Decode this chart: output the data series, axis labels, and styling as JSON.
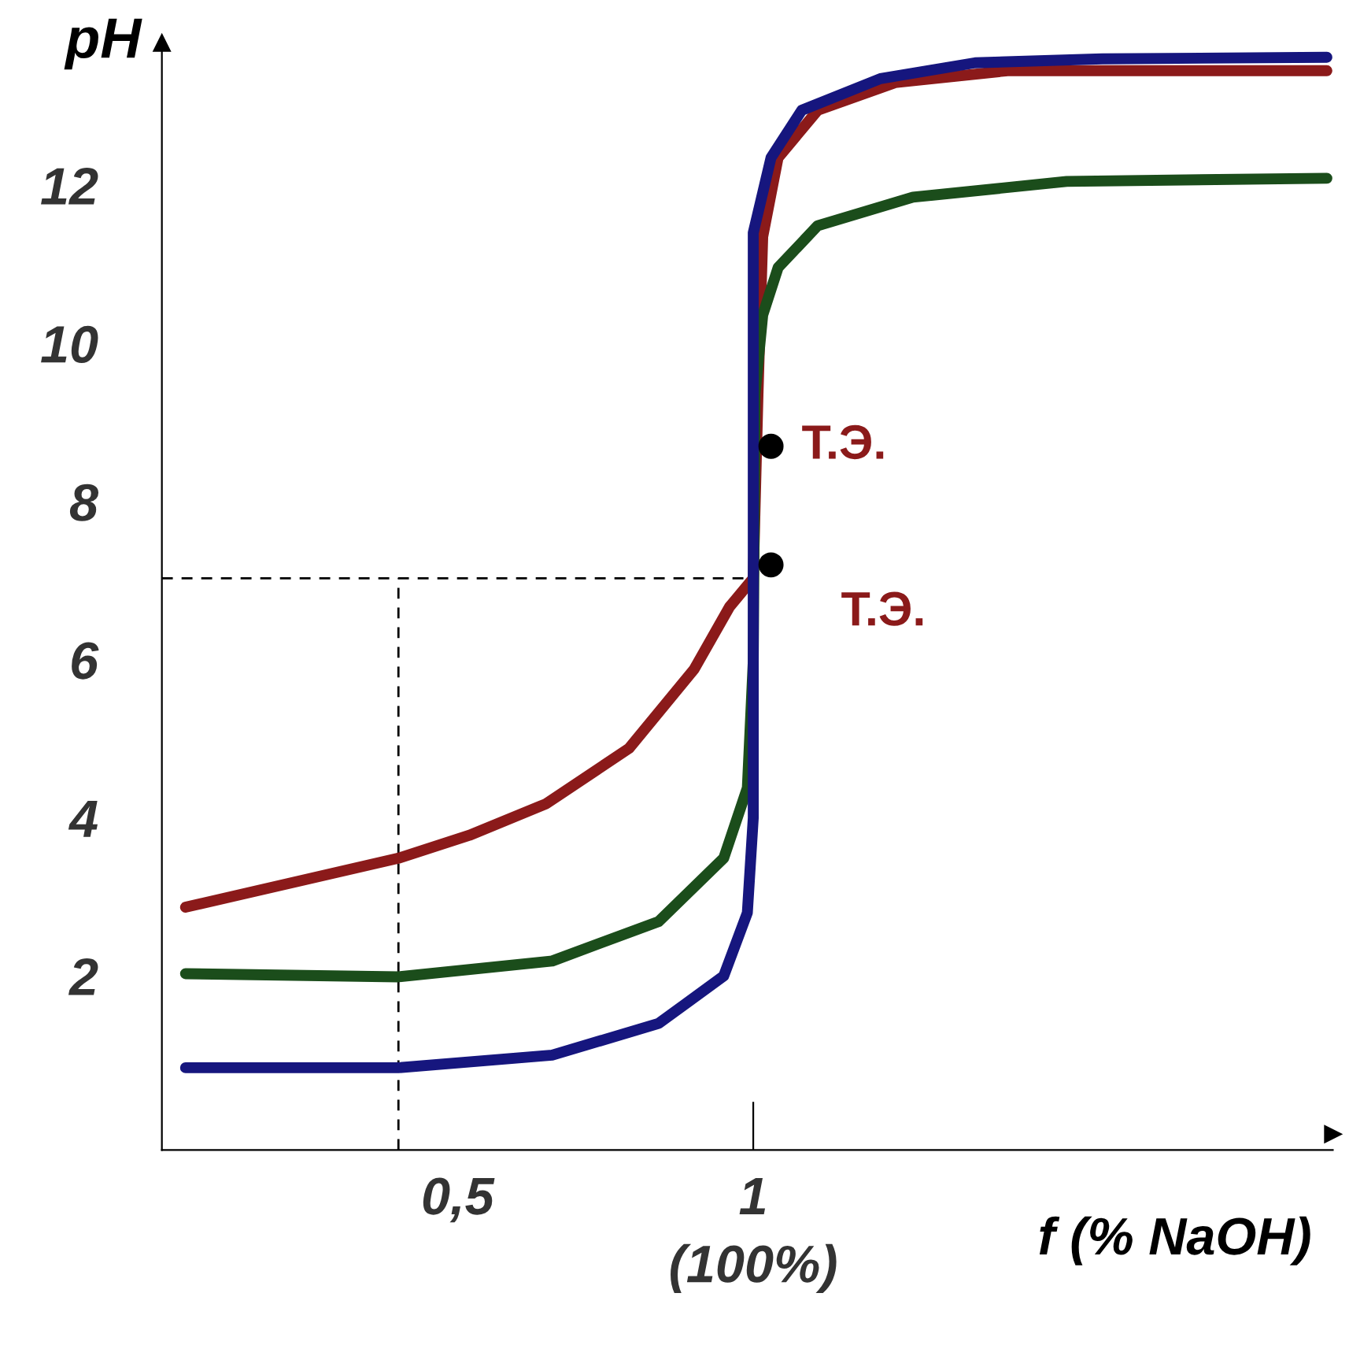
{
  "chart_data": {
    "type": "line",
    "xlabel": "f (% NaOH)",
    "ylabel": "pH",
    "xlim": [
      0,
      1.98
    ],
    "ylim": [
      -0.2,
      13.8
    ],
    "xticks": [
      {
        "value": 0.5,
        "label": "0,5"
      },
      1
    ],
    "yticks": [
      2,
      4,
      6,
      8,
      10,
      12
    ],
    "grid": false,
    "legend": false,
    "series": [
      {
        "color": "#8b1a1a",
        "x": [
          0.04,
          0.4,
          0.52,
          0.65,
          0.79,
          0.9,
          0.96,
          1.0,
          1.008,
          1.016,
          1.042,
          1.109,
          1.24,
          1.43,
          1.97
        ],
        "values": [
          2.87,
          3.49,
          3.78,
          4.18,
          4.88,
          5.88,
          6.67,
          7.03,
          9.36,
          11.35,
          12.35,
          12.95,
          13.3,
          13.45,
          13.45
        ]
      },
      {
        "color": "#1b4d1b",
        "x": [
          0.04,
          0.4,
          0.66,
          0.84,
          0.95,
          0.99,
          1.0,
          1.003,
          1.016,
          1.042,
          1.109,
          1.27,
          1.53,
          1.97
        ],
        "values": [
          2.03,
          1.99,
          2.19,
          2.69,
          3.49,
          4.38,
          5.98,
          9.36,
          10.36,
          10.96,
          11.49,
          11.85,
          12.05,
          12.09
        ]
      },
      {
        "color": "#16167e",
        "x": [
          0.04,
          0.4,
          0.66,
          0.84,
          0.95,
          0.99,
          1.0,
          1.0,
          1.03,
          1.082,
          1.215,
          1.375,
          1.59,
          1.97
        ],
        "values": [
          0.84,
          0.84,
          1.0,
          1.4,
          2.0,
          2.8,
          4.0,
          11.4,
          12.35,
          12.95,
          13.35,
          13.55,
          13.6,
          13.62
        ]
      },
      {
        "color": "#000000",
        "line_style": "dashed",
        "x": [
          0,
          1.0
        ],
        "values": [
          7.03,
          7.03
        ]
      },
      {
        "color": "#000000",
        "line_style": "dashed",
        "x": [
          0.4,
          0.4
        ],
        "values": [
          -0.2,
          7.03
        ]
      },
      {
        "type": "scatter",
        "marker": "circle",
        "color": "#000000",
        "x": [
          1.03,
          1.03
        ],
        "values": [
          8.7,
          7.2
        ]
      }
    ],
    "annotations": [
      {
        "text": "Т.Э.",
        "x": 1.03,
        "y": 8.7
      },
      {
        "text": "Т.Э.",
        "x": 1.03,
        "y": 7.2
      },
      "(100%)"
    ]
  }
}
